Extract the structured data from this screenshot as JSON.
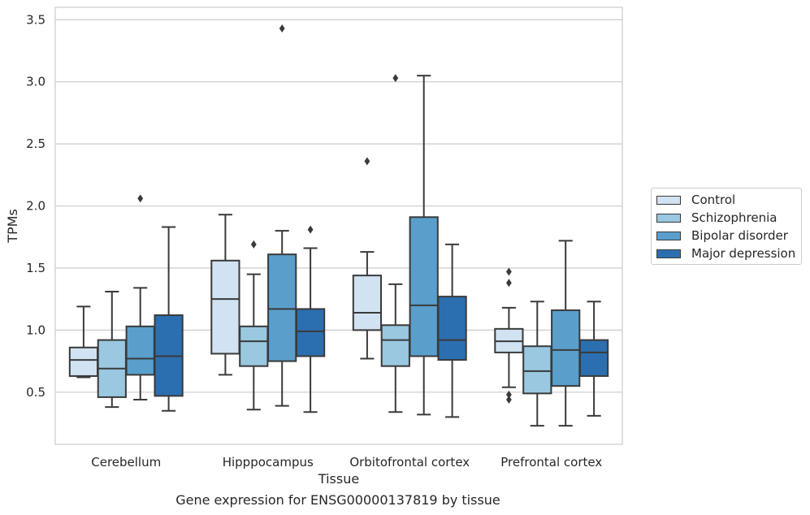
{
  "chart_data": {
    "type": "box",
    "xlabel": "Tissue",
    "ylabel": "TPMs",
    "caption": "Gene expression for ENSG00000137819 by tissue",
    "ylim": [
      0.08,
      3.6
    ],
    "yticks": [
      "0.5",
      "1.0",
      "1.5",
      "2.0",
      "2.5",
      "3.0",
      "3.5"
    ],
    "grid": "horizontal",
    "legend_position": "right",
    "categories": [
      "Cerebellum",
      "Hipppocampus",
      "Orbitofrontal cortex",
      "Prefrontal cortex"
    ],
    "series": [
      {
        "name": "Control",
        "color": "#d1e2f2",
        "boxes": [
          {
            "whislo": 0.62,
            "q1": 0.63,
            "med": 0.76,
            "q3": 0.86,
            "whishi": 1.19,
            "fliers": []
          },
          {
            "whislo": 0.64,
            "q1": 0.81,
            "med": 1.25,
            "q3": 1.56,
            "whishi": 1.93,
            "fliers": []
          },
          {
            "whislo": 0.77,
            "q1": 1.0,
            "med": 1.14,
            "q3": 1.44,
            "whishi": 1.63,
            "fliers": [
              2.36
            ]
          },
          {
            "whislo": 0.54,
            "q1": 0.82,
            "med": 0.91,
            "q3": 1.01,
            "whishi": 1.18,
            "fliers": [
              1.47,
              1.38,
              0.48,
              0.44
            ]
          }
        ]
      },
      {
        "name": "Schizophrenia",
        "color": "#9ac8e0",
        "boxes": [
          {
            "whislo": 0.38,
            "q1": 0.46,
            "med": 0.69,
            "q3": 0.92,
            "whishi": 1.31,
            "fliers": []
          },
          {
            "whislo": 0.36,
            "q1": 0.71,
            "med": 0.91,
            "q3": 1.03,
            "whishi": 1.45,
            "fliers": [
              1.69
            ]
          },
          {
            "whislo": 0.34,
            "q1": 0.71,
            "med": 0.92,
            "q3": 1.04,
            "whishi": 1.37,
            "fliers": [
              3.03
            ]
          },
          {
            "whislo": 0.23,
            "q1": 0.49,
            "med": 0.67,
            "q3": 0.87,
            "whishi": 1.23,
            "fliers": []
          }
        ]
      },
      {
        "name": "Bipolar disorder",
        "color": "#5a9fcc",
        "boxes": [
          {
            "whislo": 0.44,
            "q1": 0.64,
            "med": 0.77,
            "q3": 1.03,
            "whishi": 1.34,
            "fliers": [
              2.06
            ]
          },
          {
            "whislo": 0.39,
            "q1": 0.75,
            "med": 1.17,
            "q3": 1.61,
            "whishi": 1.8,
            "fliers": [
              3.43
            ]
          },
          {
            "whislo": 0.32,
            "q1": 0.79,
            "med": 1.2,
            "q3": 1.91,
            "whishi": 3.05,
            "fliers": []
          },
          {
            "whislo": 0.23,
            "q1": 0.55,
            "med": 0.84,
            "q3": 1.16,
            "whishi": 1.72,
            "fliers": []
          }
        ]
      },
      {
        "name": "Major depression",
        "color": "#2c6fb0",
        "boxes": [
          {
            "whislo": 0.35,
            "q1": 0.47,
            "med": 0.79,
            "q3": 1.12,
            "whishi": 1.83,
            "fliers": []
          },
          {
            "whislo": 0.34,
            "q1": 0.79,
            "med": 0.99,
            "q3": 1.17,
            "whishi": 1.66,
            "fliers": [
              1.81
            ]
          },
          {
            "whislo": 0.3,
            "q1": 0.76,
            "med": 0.92,
            "q3": 1.27,
            "whishi": 1.69,
            "fliers": []
          },
          {
            "whislo": 0.31,
            "q1": 0.63,
            "med": 0.82,
            "q3": 0.92,
            "whishi": 1.23,
            "fliers": []
          }
        ]
      }
    ]
  }
}
